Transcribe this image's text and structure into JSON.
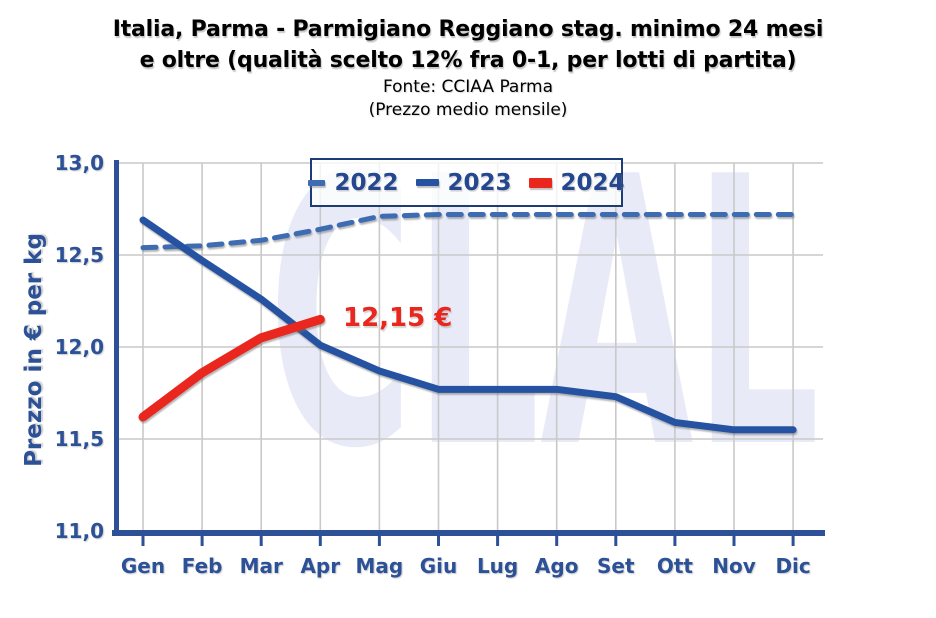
{
  "header": {
    "title_line1": "Italia, Parma - Parmigiano Reggiano stag. minimo 24 mesi",
    "title_line2": "e oltre (qualità scelto 12% fra 0-1, per lotti di partita)",
    "source": "Fonte: CCIAA Parma",
    "subtitle": "(Prezzo medio mensile)"
  },
  "watermark": {
    "text": "CLAL"
  },
  "chart_data": {
    "type": "line",
    "title": "Italia, Parma - Parmigiano Reggiano stag. minimo 24 mesi e oltre (qualità scelto 12% fra 0-1, per lotti di partita)",
    "subtitle": "Prezzo medio mensile",
    "source": "CCIAA Parma",
    "xlabel": "",
    "ylabel": "Prezzo in € per kg",
    "ylim": [
      11.0,
      13.0
    ],
    "y_tick_step": 0.5,
    "y_tick_values": [
      13.0,
      12.5,
      12.0,
      11.5,
      11.0
    ],
    "y_tick_labels": [
      "13,0",
      "12,5",
      "12,0",
      "11,5",
      "11,0"
    ],
    "grid": true,
    "legend_position": "top-center",
    "categories": [
      "Gen",
      "Feb",
      "Mar",
      "Apr",
      "Mag",
      "Giu",
      "Lug",
      "Ago",
      "Set",
      "Ott",
      "Nov",
      "Dic"
    ],
    "series": [
      {
        "name": "2022",
        "color": "#3e6cb3",
        "dash": true,
        "width": 5,
        "values": [
          12.54,
          12.55,
          12.58,
          12.64,
          12.71,
          12.72,
          12.72,
          12.72,
          12.72,
          12.72,
          12.72,
          12.72
        ]
      },
      {
        "name": "2023",
        "color": "#2553a2",
        "dash": false,
        "width": 7,
        "values": [
          12.69,
          12.47,
          12.26,
          12.01,
          11.87,
          11.77,
          11.77,
          11.77,
          11.73,
          11.59,
          11.55,
          11.55
        ]
      },
      {
        "name": "2024",
        "color": "#e9271e",
        "dash": false,
        "width": 9,
        "values": [
          11.62,
          11.86,
          12.05,
          12.15
        ]
      }
    ],
    "annotation": {
      "text": "12,15 €",
      "series": "2024",
      "category": "Apr",
      "value": 12.15
    },
    "style": {
      "axis_color": "#2d5196",
      "grid_color": "#c9c9c9",
      "legend_border_color": "#1c3c78",
      "annotation_color": "#e9271e",
      "watermark_color": "#e8eaf7"
    }
  }
}
